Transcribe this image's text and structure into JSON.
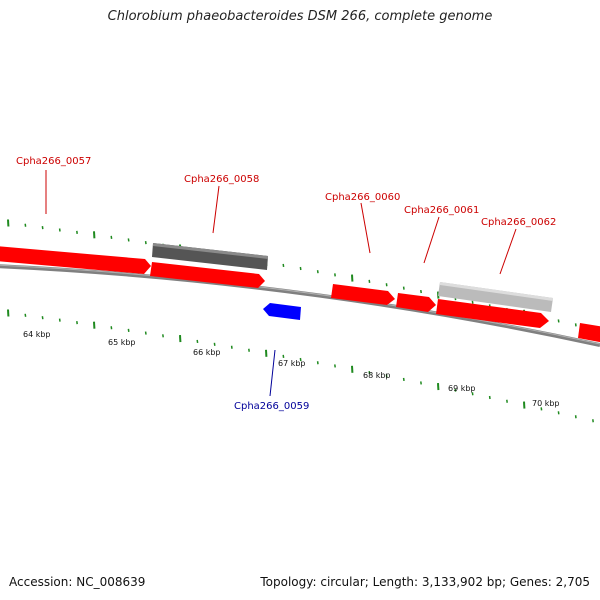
{
  "title": "Chlorobium phaeobacteroides DSM 266, complete genome",
  "footer": {
    "accession": "Accession: NC_008639",
    "summary": "Topology: circular; Length: 3,133,902 bp; Genes: 2,705"
  },
  "colors": {
    "forward_gene": "#ff0000",
    "reverse_gene": "#0000ff",
    "feature_dark": "#555555",
    "feature_light": "#bbbbbb",
    "backbone": "#808080",
    "tick": "#1f8a1f",
    "label_forward": "#cc0000",
    "label_reverse": "#000099"
  },
  "kbp_labels": [
    "64 kbp",
    "65 kbp",
    "66 kbp",
    "67 kbp",
    "68 kbp",
    "69 kbp",
    "70 kbp"
  ],
  "genes": [
    {
      "label": "Cpha266_0057",
      "strand": "forward"
    },
    {
      "label": "Cpha266_0058",
      "strand": "forward"
    },
    {
      "label": "Cpha266_0059",
      "strand": "reverse"
    },
    {
      "label": "Cpha266_0060",
      "strand": "forward"
    },
    {
      "label": "Cpha266_0061",
      "strand": "forward"
    },
    {
      "label": "Cpha266_0062",
      "strand": "forward"
    }
  ]
}
